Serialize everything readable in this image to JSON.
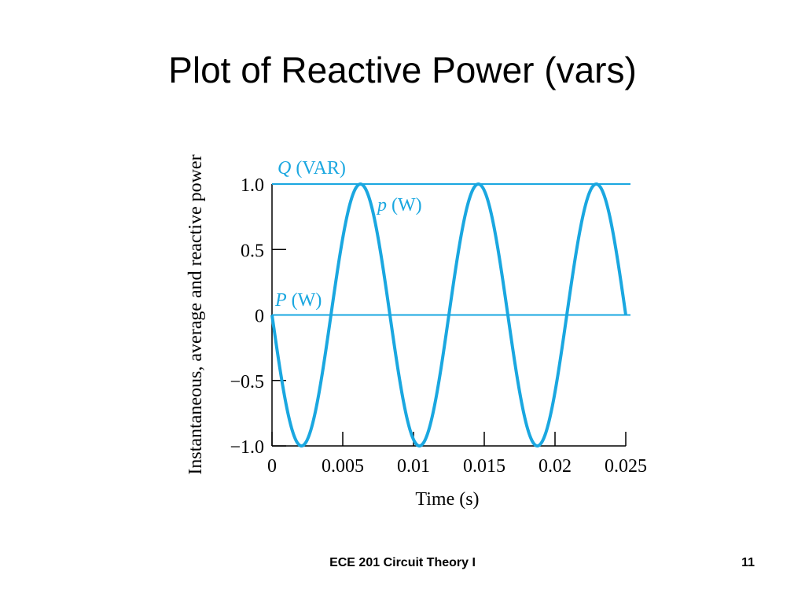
{
  "slide": {
    "title": "Plot of Reactive Power (vars)",
    "footer_text": "ECE 201 Circuit Theory I",
    "page_number": "11"
  },
  "colors": {
    "curve": "#1aa7e0",
    "axis": "#000000"
  },
  "chart_data": {
    "type": "line",
    "xlabel": "Time (s)",
    "ylabel": "Instantaneous, average and reactive power",
    "xlim": [
      0,
      0.025
    ],
    "ylim": [
      -1.0,
      1.0
    ],
    "xticks": [
      "0",
      "0.005",
      "0.01",
      "0.015",
      "0.02",
      "0.025"
    ],
    "xtick_values": [
      0,
      0.005,
      0.01,
      0.015,
      0.02,
      0.025
    ],
    "yticks": [
      "1.0",
      "0.5",
      "0",
      "−0.5",
      "−1.0"
    ],
    "ytick_values": [
      1.0,
      0.5,
      0,
      -0.5,
      -1.0
    ],
    "series": [
      {
        "name_italic": "Q",
        "name_unit": "(VAR)",
        "kind": "constant",
        "value": 1.0
      },
      {
        "name_italic": "p",
        "name_unit": "(W)",
        "kind": "function",
        "formula": "-sin(2*pi*120*t)",
        "frequency_hz": 120
      },
      {
        "name_italic": "P",
        "name_unit": "(W)",
        "kind": "constant",
        "value": 0
      }
    ]
  }
}
